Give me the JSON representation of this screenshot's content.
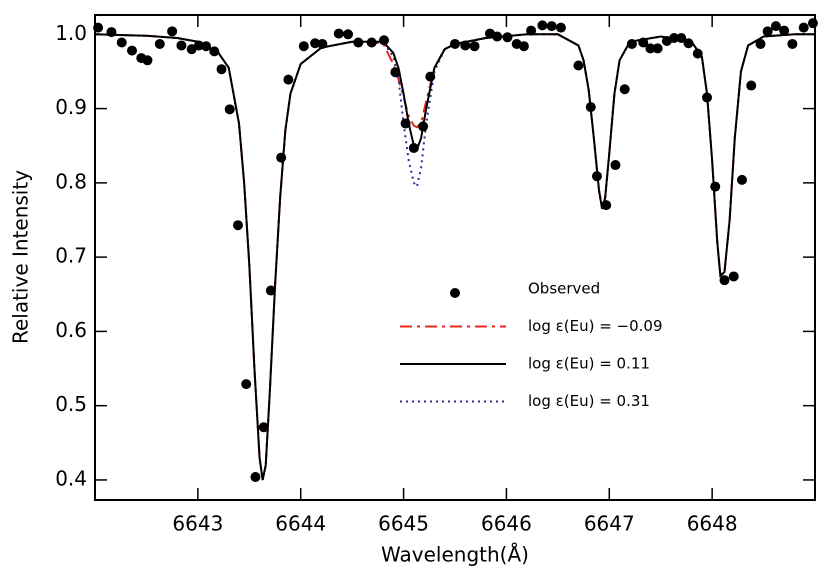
{
  "chart_data": {
    "type": "line",
    "xlabel": "Wavelength(Å)",
    "ylabel": "Relative Intensity",
    "xlim": [
      6642.0,
      6649.0
    ],
    "ylim": [
      0.373,
      1.026
    ],
    "xticks": [
      6643,
      6644,
      6645,
      6646,
      6647,
      6648
    ],
    "yticks": [
      0.4,
      0.5,
      0.6,
      0.7,
      0.8,
      0.9,
      {
        "value": 1,
        "label": "1.0"
      }
    ],
    "legend": "lower right",
    "x": [
      6642.0,
      6642.5,
      6642.8,
      6643.0,
      6643.2,
      6643.3,
      6643.4,
      6643.45,
      6643.5,
      6643.55,
      6643.6,
      6643.63,
      6643.66,
      6643.7,
      6643.75,
      6643.8,
      6643.85,
      6643.9,
      6644.0,
      6644.2,
      6644.5,
      6644.8,
      6644.9,
      6644.95,
      6645.0,
      6645.05,
      6645.1,
      6645.13,
      6645.17,
      6645.22,
      6645.3,
      6645.4,
      6645.5,
      6645.8,
      6646.2,
      6646.5,
      6646.7,
      6646.75,
      6646.8,
      6646.85,
      6646.9,
      6646.93,
      6646.96,
      6647.0,
      6647.05,
      6647.1,
      6647.2,
      6647.5,
      6647.8,
      6647.9,
      6647.95,
      6648.0,
      6648.05,
      6648.08,
      6648.12,
      6648.17,
      6648.22,
      6648.28,
      6648.35,
      6648.5,
      6648.8,
      6649.0
    ],
    "series": [
      {
        "name": "Observed",
        "color": "#000000",
        "marker": "circle",
        "x": [
          6642.03,
          6642.16,
          6642.26,
          6642.36,
          6642.45,
          6642.51,
          6642.63,
          6642.75,
          6642.84,
          6642.94,
          6643.01,
          6643.08,
          6643.16,
          6643.23,
          6643.31,
          6643.39,
          6643.47,
          6643.56,
          6643.64,
          6643.71,
          6643.81,
          6643.88,
          6644.03,
          6644.14,
          6644.21,
          6644.37,
          6644.46,
          6644.56,
          6644.69,
          6644.81,
          6644.92,
          6645.02,
          6645.1,
          6645.19,
          6645.26,
          6645.5,
          6645.6,
          6645.69,
          6645.84,
          6645.91,
          6646.01,
          6646.1,
          6646.17,
          6646.24,
          6646.35,
          6646.44,
          6646.53,
          6646.7,
          6646.82,
          6646.88,
          6646.97,
          6647.06,
          6647.15,
          6647.22,
          6647.33,
          6647.4,
          6647.47,
          6647.56,
          6647.63,
          6647.7,
          6647.77,
          6647.86,
          6647.95,
          6648.03,
          6648.12,
          6648.21,
          6648.29,
          6648.38,
          6648.47,
          6648.54,
          6648.62,
          6648.7,
          6648.78,
          6648.89,
          6648.98
        ],
        "values": [
          1.009,
          1.003,
          0.989,
          0.978,
          0.968,
          0.965,
          0.987,
          1.004,
          0.985,
          0.98,
          0.985,
          0.984,
          0.977,
          0.953,
          0.899,
          0.743,
          0.529,
          0.404,
          0.471,
          0.655,
          0.834,
          0.939,
          0.984,
          0.988,
          0.987,
          1.001,
          1.0,
          0.989,
          0.989,
          0.992,
          0.949,
          0.88,
          0.847,
          0.876,
          0.943,
          0.987,
          0.985,
          0.984,
          1.001,
          0.997,
          0.996,
          0.987,
          0.984,
          1.005,
          1.012,
          1.011,
          1.009,
          0.958,
          0.902,
          0.809,
          0.77,
          0.824,
          0.926,
          0.987,
          0.989,
          0.981,
          0.981,
          0.991,
          0.995,
          0.995,
          0.988,
          0.974,
          0.915,
          0.795,
          0.669,
          0.674,
          0.804,
          0.931,
          0.987,
          1.004,
          1.011,
          1.005,
          0.987,
          1.009,
          1.015
        ]
      },
      {
        "name": "log ε(Eu) = −0.09",
        "color": "#e8261c",
        "dash": "dashdot",
        "values": [
          1.0,
          0.998,
          0.995,
          0.99,
          0.975,
          0.955,
          0.88,
          0.8,
          0.69,
          0.55,
          0.43,
          0.4,
          0.42,
          0.52,
          0.66,
          0.78,
          0.87,
          0.92,
          0.96,
          0.982,
          0.99,
          0.988,
          0.96,
          0.94,
          0.915,
          0.89,
          0.877,
          0.875,
          0.88,
          0.91,
          0.955,
          0.98,
          0.987,
          0.995,
          1.0,
          1.0,
          0.985,
          0.965,
          0.925,
          0.86,
          0.79,
          0.765,
          0.78,
          0.84,
          0.92,
          0.965,
          0.99,
          0.997,
          0.99,
          0.97,
          0.92,
          0.83,
          0.72,
          0.675,
          0.68,
          0.75,
          0.86,
          0.95,
          0.985,
          0.997,
          1.0,
          1.0
        ]
      },
      {
        "name": "log ε(Eu) = 0.11",
        "color": "#000000",
        "dash": "solid",
        "values": [
          1.0,
          0.998,
          0.995,
          0.99,
          0.975,
          0.955,
          0.88,
          0.8,
          0.69,
          0.55,
          0.43,
          0.4,
          0.42,
          0.52,
          0.66,
          0.78,
          0.87,
          0.92,
          0.96,
          0.982,
          0.99,
          0.99,
          0.975,
          0.955,
          0.92,
          0.88,
          0.85,
          0.845,
          0.86,
          0.9,
          0.955,
          0.98,
          0.987,
          0.995,
          1.0,
          1.0,
          0.985,
          0.965,
          0.925,
          0.86,
          0.79,
          0.765,
          0.78,
          0.84,
          0.92,
          0.965,
          0.99,
          0.997,
          0.99,
          0.97,
          0.92,
          0.83,
          0.72,
          0.675,
          0.68,
          0.75,
          0.86,
          0.95,
          0.985,
          0.997,
          1.0,
          1.0
        ]
      },
      {
        "name": "log ε(Eu) = 0.31",
        "color": "#2b2b9a",
        "dash": "dotted",
        "values": [
          1.0,
          0.998,
          0.995,
          0.99,
          0.975,
          0.955,
          0.88,
          0.8,
          0.69,
          0.55,
          0.43,
          0.4,
          0.42,
          0.52,
          0.66,
          0.78,
          0.87,
          0.92,
          0.96,
          0.982,
          0.99,
          0.99,
          0.97,
          0.94,
          0.88,
          0.83,
          0.8,
          0.795,
          0.82,
          0.88,
          0.95,
          0.98,
          0.987,
          0.995,
          1.0,
          1.0,
          0.985,
          0.965,
          0.925,
          0.86,
          0.79,
          0.765,
          0.78,
          0.84,
          0.92,
          0.965,
          0.99,
          0.997,
          0.99,
          0.97,
          0.92,
          0.83,
          0.72,
          0.675,
          0.68,
          0.75,
          0.86,
          0.95,
          0.985,
          0.997,
          1.0,
          1.0
        ]
      }
    ]
  }
}
